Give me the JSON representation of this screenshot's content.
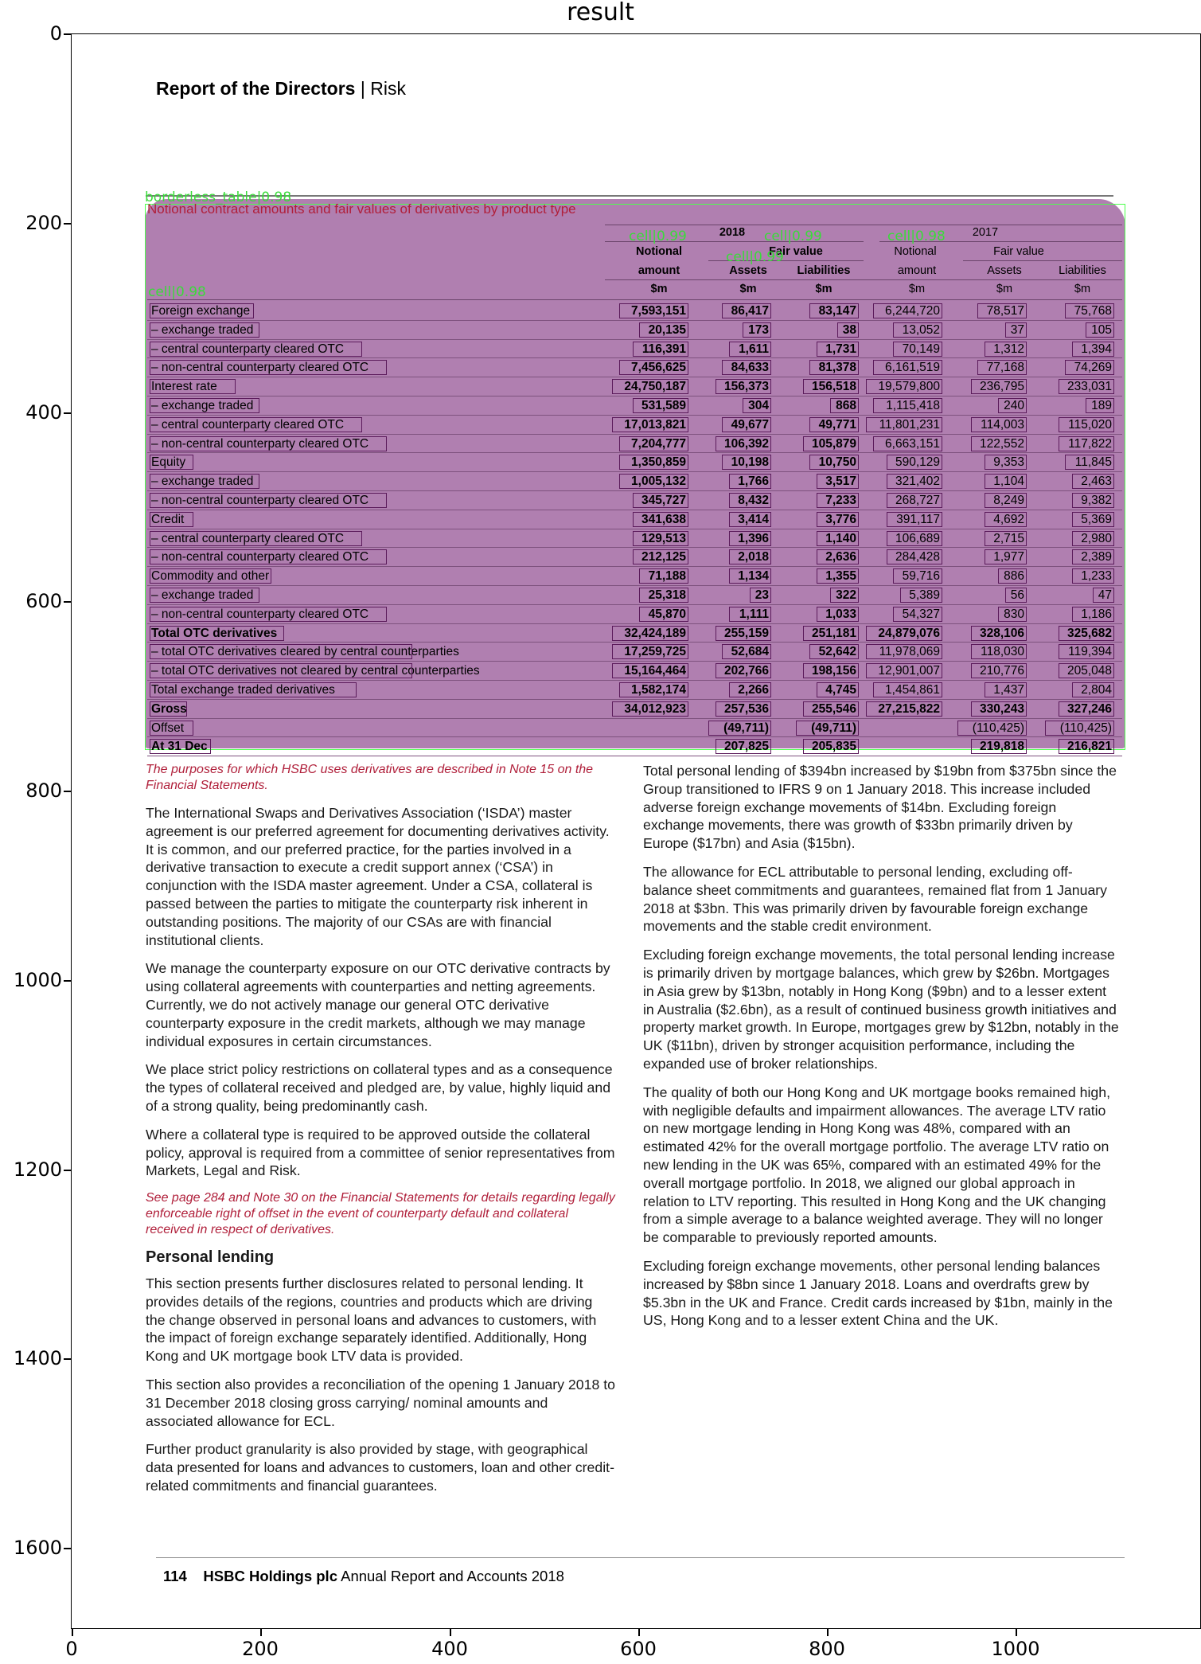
{
  "figure": {
    "title": "result"
  },
  "axes": {
    "yticks": [
      "0",
      "200",
      "400",
      "600",
      "800",
      "1000",
      "1200",
      "1400",
      "1600"
    ],
    "xticks": [
      "0",
      "200",
      "400",
      "600",
      "800",
      "1000"
    ]
  },
  "header": {
    "bold": "Report of the Directors",
    "sep": " | ",
    "rest": "Risk"
  },
  "table": {
    "box_tag": "borderless_table|0.98",
    "title": "Notional contract amounts and fair values of derivatives by product type",
    "year_2018": "2018",
    "year_2017": "2017",
    "h_notional": "Notional",
    "h_amount": "amount",
    "h_fair_value": "Fair value",
    "h_assets": "Assets",
    "h_liabilities": "Liabilities",
    "h_unit": "$m",
    "rows": [
      {
        "label": "Foreign exchange",
        "v": [
          "7,593,151",
          "86,417",
          "83,147",
          "6,244,720",
          "78,517",
          "75,768"
        ],
        "bold": false
      },
      {
        "label": "– exchange traded",
        "v": [
          "20,135",
          "173",
          "38",
          "13,052",
          "37",
          "105"
        ],
        "bold": false
      },
      {
        "label": "– central counterparty cleared OTC",
        "v": [
          "116,391",
          "1,611",
          "1,731",
          "70,149",
          "1,312",
          "1,394"
        ],
        "bold": false
      },
      {
        "label": "– non-central counterparty cleared OTC",
        "v": [
          "7,456,625",
          "84,633",
          "81,378",
          "6,161,519",
          "77,168",
          "74,269"
        ],
        "bold": false
      },
      {
        "label": "Interest rate",
        "v": [
          "24,750,187",
          "156,373",
          "156,518",
          "19,579,800",
          "236,795",
          "233,031"
        ],
        "bold": false
      },
      {
        "label": "– exchange traded",
        "v": [
          "531,589",
          "304",
          "868",
          "1,115,418",
          "240",
          "189"
        ],
        "bold": false
      },
      {
        "label": "– central counterparty cleared OTC",
        "v": [
          "17,013,821",
          "49,677",
          "49,771",
          "11,801,231",
          "114,003",
          "115,020"
        ],
        "bold": false
      },
      {
        "label": "– non-central counterparty cleared OTC",
        "v": [
          "7,204,777",
          "106,392",
          "105,879",
          "6,663,151",
          "122,552",
          "117,822"
        ],
        "bold": false
      },
      {
        "label": "Equity",
        "v": [
          "1,350,859",
          "10,198",
          "10,750",
          "590,129",
          "9,353",
          "11,845"
        ],
        "bold": false
      },
      {
        "label": "– exchange traded",
        "v": [
          "1,005,132",
          "1,766",
          "3,517",
          "321,402",
          "1,104",
          "2,463"
        ],
        "bold": false
      },
      {
        "label": "– non-central counterparty cleared OTC",
        "v": [
          "345,727",
          "8,432",
          "7,233",
          "268,727",
          "8,249",
          "9,382"
        ],
        "bold": false
      },
      {
        "label": "Credit",
        "v": [
          "341,638",
          "3,414",
          "3,776",
          "391,117",
          "4,692",
          "5,369"
        ],
        "bold": false
      },
      {
        "label": "– central counterparty cleared OTC",
        "v": [
          "129,513",
          "1,396",
          "1,140",
          "106,689",
          "2,715",
          "2,980"
        ],
        "bold": false
      },
      {
        "label": "– non-central counterparty cleared OTC",
        "v": [
          "212,125",
          "2,018",
          "2,636",
          "284,428",
          "1,977",
          "2,389"
        ],
        "bold": false
      },
      {
        "label": "Commodity and other",
        "v": [
          "71,188",
          "1,134",
          "1,355",
          "59,716",
          "886",
          "1,233"
        ],
        "bold": false
      },
      {
        "label": "– exchange traded",
        "v": [
          "25,318",
          "23",
          "322",
          "5,389",
          "56",
          "47"
        ],
        "bold": false
      },
      {
        "label": "– non-central counterparty cleared OTC",
        "v": [
          "45,870",
          "1,111",
          "1,033",
          "54,327",
          "830",
          "1,186"
        ],
        "bold": false
      },
      {
        "label": "Total OTC derivatives",
        "v": [
          "32,424,189",
          "255,159",
          "251,181",
          "24,879,076",
          "328,106",
          "325,682"
        ],
        "bold": true
      },
      {
        "label": "– total OTC derivatives cleared by central counterparties",
        "v": [
          "17,259,725",
          "52,684",
          "52,642",
          "11,978,069",
          "118,030",
          "119,394"
        ],
        "bold": false
      },
      {
        "label": "– total OTC derivatives not cleared by central counterparties",
        "v": [
          "15,164,464",
          "202,766",
          "198,156",
          "12,901,007",
          "210,776",
          "205,048"
        ],
        "bold": false
      },
      {
        "label": "Total exchange traded derivatives",
        "v": [
          "1,582,174",
          "2,266",
          "4,745",
          "1,454,861",
          "1,437",
          "2,804"
        ],
        "bold": false
      },
      {
        "label": "Gross",
        "v": [
          "34,012,923",
          "257,536",
          "255,546",
          "27,215,822",
          "330,243",
          "327,246"
        ],
        "bold": true
      },
      {
        "label": "Offset",
        "v": [
          "",
          "(49,711)",
          "(49,711)",
          "",
          "(110,425)",
          "(110,425)"
        ],
        "bold": false
      },
      {
        "label": "At 31 Dec",
        "v": [
          "",
          "207,825",
          "205,835",
          "",
          "219,818",
          "216,821"
        ],
        "bold": true
      }
    ],
    "cell_tags": [
      "cell|0.99",
      "cell|0.99",
      "cell|0.98",
      "cell|0.99",
      "cell|0.98"
    ]
  },
  "left_col": {
    "note1": "The purposes for which HSBC uses derivatives are described in Note 15 on the Financial Statements.",
    "p1": "The International Swaps and Derivatives Association (‘ISDA’) master agreement is our preferred agreement for documenting derivatives activity. It is common, and our preferred practice, for the parties involved in a derivative transaction to execute a credit support annex (‘CSA’) in conjunction with the ISDA master agreement. Under a CSA, collateral is passed between the parties to mitigate the counterparty risk inherent in outstanding positions. The majority of our CSAs are with financial institutional clients.",
    "p2": "We manage the counterparty exposure on our OTC derivative contracts by using collateral agreements with counterparties and netting agreements. Currently, we do not actively manage our general OTC derivative counterparty exposure in the credit markets, although we may manage individual exposures in certain circumstances.",
    "p3": "We place strict policy restrictions on collateral types and as a consequence the types of collateral received and pledged are, by value, highly liquid and of a strong quality, being predominantly cash.",
    "p4": "Where a collateral type is required to be approved outside the collateral policy, approval is required from a committee of senior representatives from Markets, Legal and Risk.",
    "note2": "See page 284 and Note 30 on the Financial Statements for details regarding legally enforceable right of offset in the event of counterparty default and collateral received in respect of derivatives.",
    "heading": "Personal lending",
    "p5": "This section presents further disclosures related to personal lending. It provides details of the regions, countries and products which are driving the change observed in personal loans and advances to customers, with the impact of foreign exchange separately identified. Additionally, Hong Kong and UK mortgage book LTV data is provided.",
    "p6": "This section also provides a reconciliation of the opening 1 January 2018 to 31 December 2018 closing gross carrying/ nominal amounts and associated allowance for ECL.",
    "p7": "Further product granularity is also provided by stage, with geographical data presented for loans and advances to customers, loan and other credit-related commitments and financial guarantees."
  },
  "right_col": {
    "p1": "Total personal lending of $394bn increased by $19bn from $375bn since the Group transitioned to IFRS 9 on 1 January 2018. This increase included adverse foreign exchange movements of $14bn. Excluding foreign exchange movements, there was growth of $33bn primarily driven by Europe ($17bn) and Asia ($15bn).",
    "p2": "The allowance for ECL attributable to personal lending, excluding off-balance sheet commitments and guarantees, remained flat from 1 January 2018 at $3bn. This was primarily driven by favourable foreign exchange movements and the stable credit environment.",
    "p3": "Excluding foreign exchange movements, the total personal lending increase is primarily driven by mortgage balances, which grew by $26bn. Mortgages in Asia grew by $13bn, notably in Hong Kong ($9bn) and to a lesser extent in Australia ($2.6bn), as a result of continued business growth initiatives and property market growth. In Europe, mortgages grew by $12bn, notably in the UK ($11bn), driven by stronger acquisition performance, including the expanded use of broker relationships.",
    "p4": "The quality of both our Hong Kong and UK mortgage books remained high, with negligible defaults and impairment allowances. The average LTV ratio on new mortgage lending in Hong Kong was 48%, compared with an estimated 42% for the overall mortgage portfolio. The average LTV ratio on new lending in the UK was 65%, compared with an estimated 49% for the overall mortgage portfolio. In 2018, we aligned our global approach in relation to LTV reporting. This resulted in Hong Kong and the UK changing from a simple average to a balance weighted average. They will no longer be comparable to previously reported amounts.",
    "p5": "Excluding foreign exchange movements, other personal lending balances increased by $8bn since 1 January 2018. Loans and overdrafts grew by $5.3bn in the UK and France. Credit cards increased by $1bn, mainly in the US, Hong Kong and to a lesser extent China and the UK."
  },
  "footer": {
    "page": "114",
    "company": "HSBC Holdings plc",
    "doc": " Annual Report and Accounts 2018"
  }
}
